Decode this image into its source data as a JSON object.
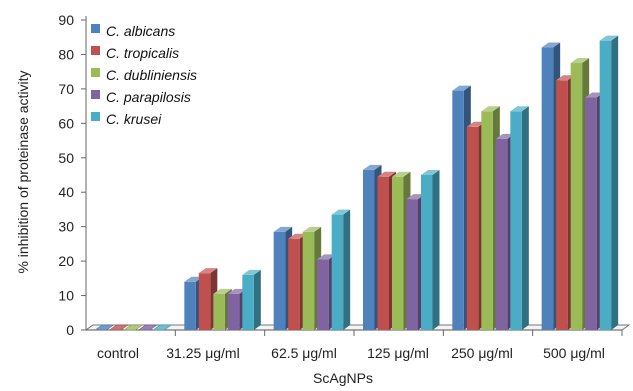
{
  "chart_data": {
    "type": "bar",
    "categories": [
      "control",
      "31.25 μg/ml",
      "62.5 μg/ml",
      "125 μg/ml",
      "250 μg/ml",
      "500 μg/ml"
    ],
    "series": [
      {
        "name": "C. albicans",
        "color": "#4F81BD",
        "values": [
          0,
          14,
          28.5,
          46.5,
          69.5,
          82
        ]
      },
      {
        "name": "C. tropicalis",
        "color": "#C0504D",
        "values": [
          0,
          16.5,
          26.5,
          44.5,
          59,
          72.5
        ]
      },
      {
        "name": "C. dubliniensis",
        "color": "#9BBB59",
        "values": [
          0,
          10.5,
          28.5,
          44.5,
          63.5,
          77.5
        ]
      },
      {
        "name": "C. parapilosis",
        "color": "#8064A2",
        "values": [
          0,
          10.5,
          20.5,
          38,
          55.5,
          67.5
        ]
      },
      {
        "name": "C. krusei",
        "color": "#4BACC6",
        "values": [
          0,
          16,
          33.5,
          45,
          63.5,
          84
        ]
      }
    ],
    "title": "",
    "xlabel": "ScAgNPs",
    "ylabel": "% inhibition of proteinase activity",
    "ylim": [
      0,
      90
    ],
    "yticks": [
      "0",
      "10",
      "20",
      "30",
      "40",
      "50",
      "60",
      "70",
      "80",
      "90"
    ],
    "grid": false,
    "legend_position": "top-left",
    "style": "3d-clustered-bar"
  }
}
